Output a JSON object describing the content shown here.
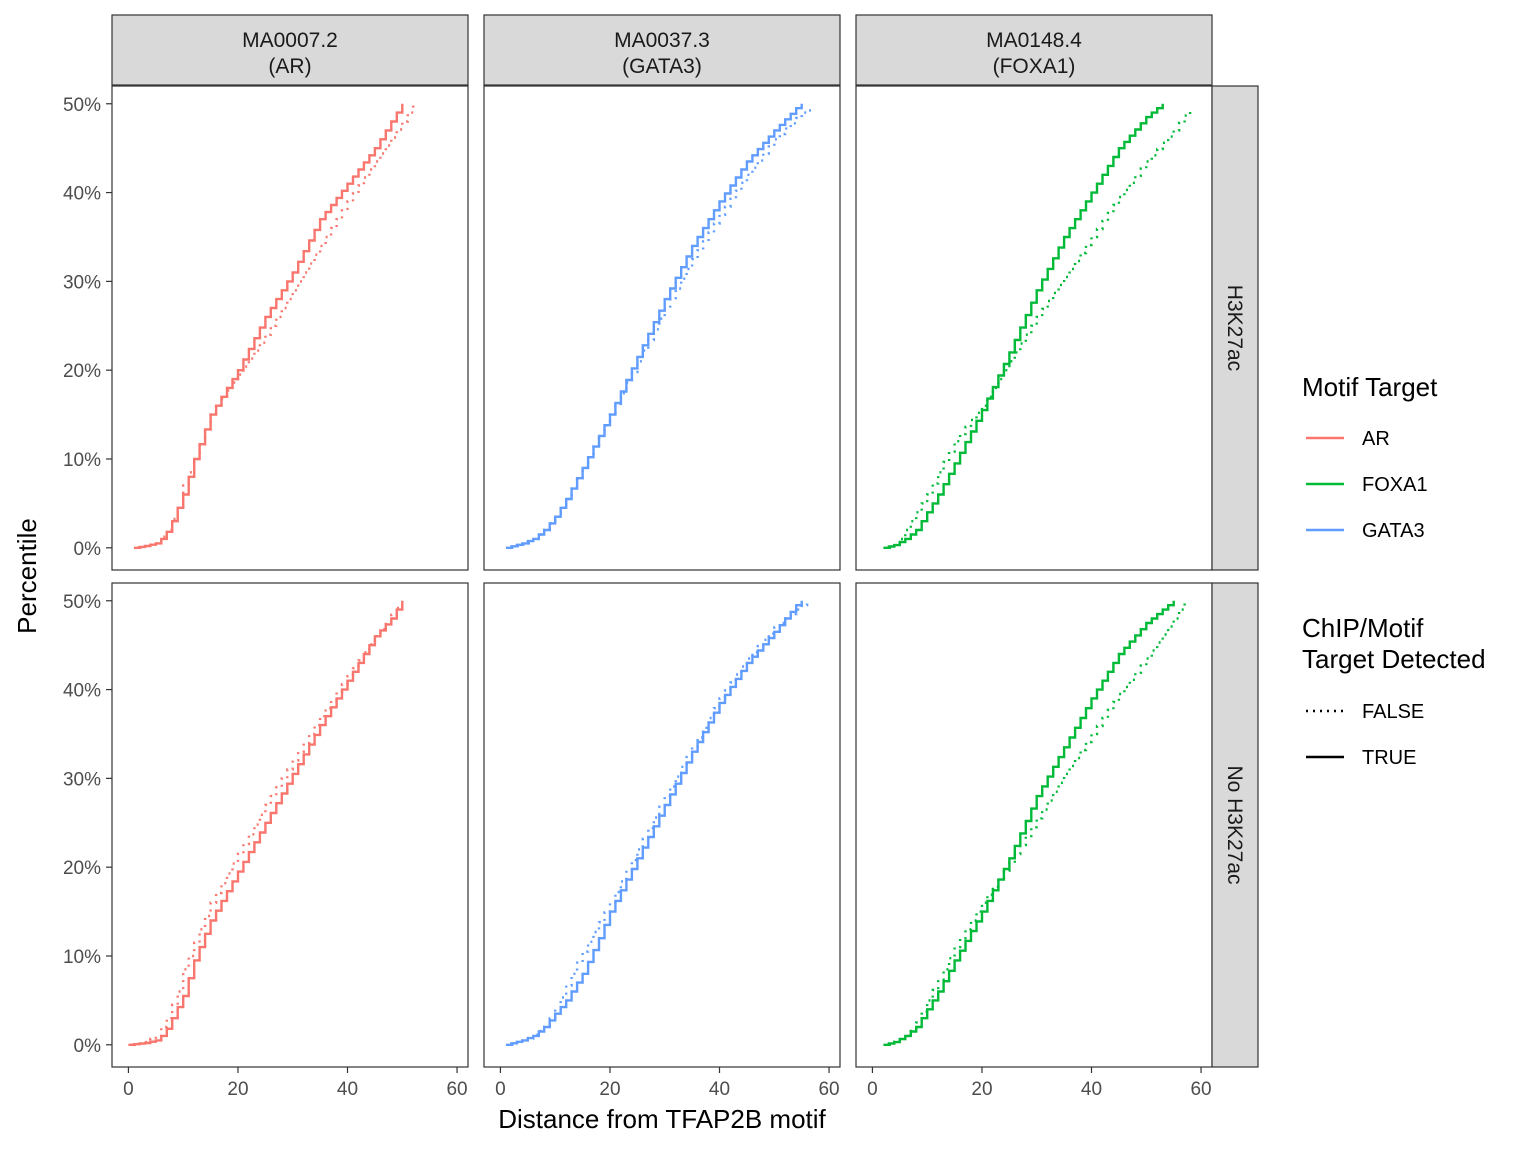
{
  "chart_data": {
    "type": "line",
    "subtype": "step (empirical cumulative distribution), faceted grid",
    "xlabel": "Distance from TFAP2B motif",
    "ylabel": "Percentile",
    "xlim": [
      -3,
      62
    ],
    "ylim": [
      -2.5,
      52
    ],
    "x_ticks": [
      0,
      20,
      40,
      60
    ],
    "y_ticks": [
      0,
      10,
      20,
      30,
      40,
      50
    ],
    "y_tick_labels": [
      "0%",
      "10%",
      "20%",
      "30%",
      "40%",
      "50%"
    ],
    "grid": true,
    "facet_columns": [
      {
        "line1": "MA0007.2",
        "line2": "(AR)",
        "target": "AR"
      },
      {
        "line1": "MA0037.3",
        "line2": "(GATA3)",
        "target": "GATA3"
      },
      {
        "line1": "MA0148.4",
        "line2": "(FOXA1)",
        "target": "FOXA1"
      }
    ],
    "facet_rows": [
      "H3K27ac",
      "No H3K27ac"
    ],
    "legend": {
      "placement": "right",
      "color": {
        "title": "Motif Target",
        "items": [
          {
            "label": "AR",
            "color": "#F8766D"
          },
          {
            "label": "FOXA1",
            "color": "#00BA38"
          },
          {
            "label": "GATA3",
            "color": "#619CFF"
          }
        ]
      },
      "linetype": {
        "title_line1": "ChIP/Motif",
        "title_line2": "Target Detected",
        "items": [
          {
            "label": "FALSE",
            "style": "dotted"
          },
          {
            "label": "TRUE",
            "style": "solid"
          }
        ]
      }
    },
    "series": [
      {
        "row": "H3K27ac",
        "column": "MA0007.2",
        "target": "AR",
        "detected": "TRUE",
        "x": [
          1,
          3,
          5,
          6,
          7,
          8,
          10,
          12,
          15,
          20,
          25,
          30,
          35,
          40,
          45,
          48,
          50
        ],
        "y": [
          0,
          0.2,
          0.5,
          1,
          1.8,
          3,
          6,
          10,
          15,
          20,
          26,
          31,
          37,
          41,
          45,
          48,
          50
        ]
      },
      {
        "row": "H3K27ac",
        "column": "MA0007.2",
        "target": "AR",
        "detected": "FALSE",
        "x": [
          2,
          5,
          7,
          9,
          10,
          12,
          15,
          20,
          25,
          30,
          35,
          40,
          45,
          50,
          52
        ],
        "y": [
          0,
          0.5,
          2,
          4.5,
          7,
          10,
          15,
          19.5,
          24,
          29,
          34,
          39,
          43.5,
          48,
          50
        ]
      },
      {
        "row": "No H3K27ac",
        "column": "MA0007.2",
        "target": "AR",
        "detected": "TRUE",
        "x": [
          0,
          3,
          5,
          6,
          7,
          8,
          10,
          12,
          15,
          20,
          25,
          30,
          35,
          40,
          45,
          48,
          50
        ],
        "y": [
          0,
          0.2,
          0.5,
          1,
          1.8,
          3,
          5.5,
          9.5,
          14,
          19.5,
          25,
          30.5,
          36,
          41,
          46,
          48,
          50
        ]
      },
      {
        "row": "No H3K27ac",
        "column": "MA0007.2",
        "target": "AR",
        "detected": "FALSE",
        "x": [
          1,
          3,
          5,
          7,
          9,
          10,
          12,
          15,
          20,
          25,
          30,
          35,
          40,
          45,
          50
        ],
        "y": [
          0,
          0.3,
          1,
          3,
          6,
          8.5,
          11.5,
          16,
          21.5,
          27,
          32,
          37,
          41.5,
          46,
          50
        ]
      },
      {
        "row": "H3K27ac",
        "column": "MA0037.3",
        "target": "GATA3",
        "detected": "TRUE",
        "x": [
          1,
          4,
          6,
          8,
          10,
          12,
          15,
          20,
          25,
          30,
          35,
          40,
          45,
          50,
          54,
          55
        ],
        "y": [
          0,
          0.5,
          1,
          2,
          3.5,
          5.5,
          9,
          15,
          21.5,
          28,
          34,
          39,
          43.5,
          47,
          49.5,
          50
        ]
      },
      {
        "row": "H3K27ac",
        "column": "MA0037.3",
        "target": "GATA3",
        "detected": "FALSE",
        "x": [
          2,
          5,
          8,
          10,
          12,
          15,
          20,
          25,
          30,
          35,
          40,
          45,
          50,
          55,
          57
        ],
        "y": [
          0,
          0.5,
          2,
          3.5,
          5.5,
          9,
          15,
          21,
          27,
          32.5,
          37.5,
          42,
          46,
          49,
          49.5
        ]
      },
      {
        "row": "No H3K27ac",
        "column": "MA0037.3",
        "target": "GATA3",
        "detected": "TRUE",
        "x": [
          1,
          4,
          6,
          8,
          10,
          12,
          15,
          18,
          20,
          25,
          30,
          35,
          40,
          45,
          50,
          54,
          55
        ],
        "y": [
          0,
          0.5,
          1,
          2,
          3.5,
          5,
          8,
          12,
          15,
          21,
          27,
          33,
          38.5,
          43,
          46.5,
          49.5,
          50
        ]
      },
      {
        "row": "No H3K27ac",
        "column": "MA0037.3",
        "target": "GATA3",
        "detected": "FALSE",
        "x": [
          2,
          5,
          8,
          10,
          13,
          15,
          20,
          25,
          30,
          35,
          40,
          45,
          50,
          55,
          56
        ],
        "y": [
          0,
          0.7,
          2,
          4,
          8,
          10.5,
          16,
          22,
          28,
          33.5,
          39,
          43.5,
          47,
          49.5,
          50
        ]
      },
      {
        "row": "H3K27ac",
        "column": "MA0148.4",
        "target": "FOXA1",
        "detected": "TRUE",
        "x": [
          2,
          4,
          6,
          8,
          10,
          12,
          15,
          20,
          25,
          30,
          35,
          40,
          45,
          50,
          53
        ],
        "y": [
          0,
          0.3,
          1,
          2,
          4,
          6,
          9.5,
          15.5,
          22,
          29,
          35,
          40,
          45,
          48.5,
          50
        ]
      },
      {
        "row": "H3K27ac",
        "column": "MA0148.4",
        "target": "FOXA1",
        "detected": "FALSE",
        "x": [
          3,
          5,
          7,
          10,
          12,
          15,
          20,
          25,
          30,
          35,
          40,
          45,
          50,
          55,
          58
        ],
        "y": [
          0,
          1,
          3,
          6,
          8.5,
          12,
          16,
          21,
          26,
          30.5,
          35,
          39.5,
          43.5,
          47,
          49.5
        ]
      },
      {
        "row": "No H3K27ac",
        "column": "MA0148.4",
        "target": "FOXA1",
        "detected": "TRUE",
        "x": [
          2,
          4,
          6,
          8,
          10,
          12,
          15,
          20,
          25,
          30,
          35,
          40,
          45,
          50,
          53,
          55
        ],
        "y": [
          0,
          0.3,
          1,
          2,
          4,
          6,
          9.5,
          15,
          21,
          28,
          33.5,
          39,
          44,
          47.5,
          49,
          50
        ]
      },
      {
        "row": "No H3K27ac",
        "column": "MA0148.4",
        "target": "FOXA1",
        "detected": "FALSE",
        "x": [
          3,
          6,
          8,
          10,
          13,
          15,
          20,
          25,
          30,
          35,
          40,
          45,
          50,
          55,
          57
        ],
        "y": [
          0,
          1,
          2.5,
          5,
          8.5,
          11,
          16,
          20.5,
          25.5,
          30.5,
          35,
          39.5,
          43.5,
          48,
          50
        ]
      }
    ]
  }
}
